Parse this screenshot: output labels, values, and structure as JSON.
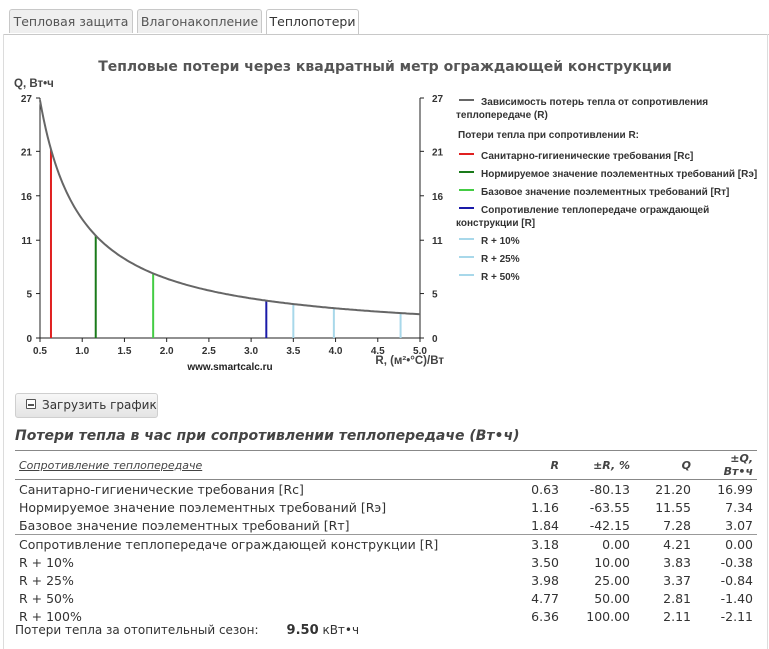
{
  "tabs": [
    {
      "label": "Тепловая защита"
    },
    {
      "label": "Влагонакопление"
    },
    {
      "label": "Теплопотери"
    }
  ],
  "chart_title": "Тепловые потери через квадратный метр ограждающей конструкции",
  "download_button": "Загрузить график",
  "colors": {
    "curve": "#666666",
    "rc": "#e02020",
    "re": "#1a7a1a",
    "rt": "#44cc44",
    "r": "#1a1aa8",
    "plus": "#a8d8ea"
  },
  "chart_data": {
    "type": "line",
    "xlabel": "R, (м²•°С)/Вт",
    "ylabel": "Q, Вт•ч",
    "ylabel_right": "",
    "watermark": "www.smartcalc.ru",
    "xlim": [
      0.5,
      5.0
    ],
    "ylim": [
      0,
      27
    ],
    "x_ticks": [
      "0.5",
      "1.0",
      "1.5",
      "2.0",
      "2.5",
      "3.0",
      "3.5",
      "4.0",
      "4.5",
      "5.0"
    ],
    "y_ticks": [
      "0",
      "5",
      "11",
      "16",
      "21",
      "27"
    ],
    "curve": {
      "name": "Зависимость потерь тепла от сопротивления теплопередаче (R)",
      "formula_constant": 13.37,
      "x_from": 0.5,
      "x_to": 5.0
    },
    "vertical_lines": [
      {
        "key": "rc",
        "x": 0.63,
        "q": 21.2
      },
      {
        "key": "re",
        "x": 1.16,
        "q": 11.55
      },
      {
        "key": "rt",
        "x": 1.84,
        "q": 7.28
      },
      {
        "key": "r",
        "x": 3.18,
        "q": 4.21
      },
      {
        "key": "plus",
        "x": 3.5,
        "q": 3.83
      },
      {
        "key": "plus",
        "x": 3.98,
        "q": 3.37
      },
      {
        "key": "plus",
        "x": 4.77,
        "q": 2.81
      }
    ]
  },
  "legend": {
    "curve_label": "Зависимость потерь тепла от сопротивления теплопередаче (R)",
    "group_label": "Потери тепла при сопротивлении R:",
    "items": [
      {
        "key": "rc",
        "label": "Санитарно-гигиенические требования [Rс]"
      },
      {
        "key": "re",
        "label": "Нормируемое значение поэлементных требований [Rэ]"
      },
      {
        "key": "rt",
        "label": "Базовое значение поэлементных требований [Rт]"
      },
      {
        "key": "r",
        "label": "Сопротивление теплопередаче ограждающей конструкции [R]"
      },
      {
        "key": "plus",
        "label": "R + 10%"
      },
      {
        "key": "plus",
        "label": "R + 25%"
      },
      {
        "key": "plus",
        "label": "R + 50%"
      }
    ]
  },
  "table": {
    "title": "Потери тепла в час при сопротивлении теплопередаче (Вт•ч)",
    "headers": [
      "Сопротивление теплопередаче",
      "R",
      "±R, %",
      "Q",
      "±Q, Вт•ч"
    ],
    "rows": [
      [
        "Санитарно-гигиенические требования [Rс]",
        "0.63",
        "-80.13",
        "21.20",
        "16.99"
      ],
      [
        "Нормируемое значение поэлементных требований [Rэ]",
        "1.16",
        "-63.55",
        "11.55",
        "7.34"
      ],
      [
        "Базовое значение поэлементных требований [Rт]",
        "1.84",
        "-42.15",
        "7.28",
        "3.07"
      ],
      [
        "Сопротивление теплопередаче ограждающей конструкции [R]",
        "3.18",
        "0.00",
        "4.21",
        "0.00"
      ],
      [
        "R + 10%",
        "3.50",
        "10.00",
        "3.83",
        "-0.38"
      ],
      [
        "R + 25%",
        "3.98",
        "25.00",
        "3.37",
        "-0.84"
      ],
      [
        "R + 50%",
        "4.77",
        "50.00",
        "2.81",
        "-1.40"
      ],
      [
        "R + 100%",
        "6.36",
        "100.00",
        "2.11",
        "-2.11"
      ]
    ]
  },
  "season": {
    "label": "Потери тепла за отопительный сезон:",
    "value": "9.50",
    "unit": "кВт•ч"
  }
}
